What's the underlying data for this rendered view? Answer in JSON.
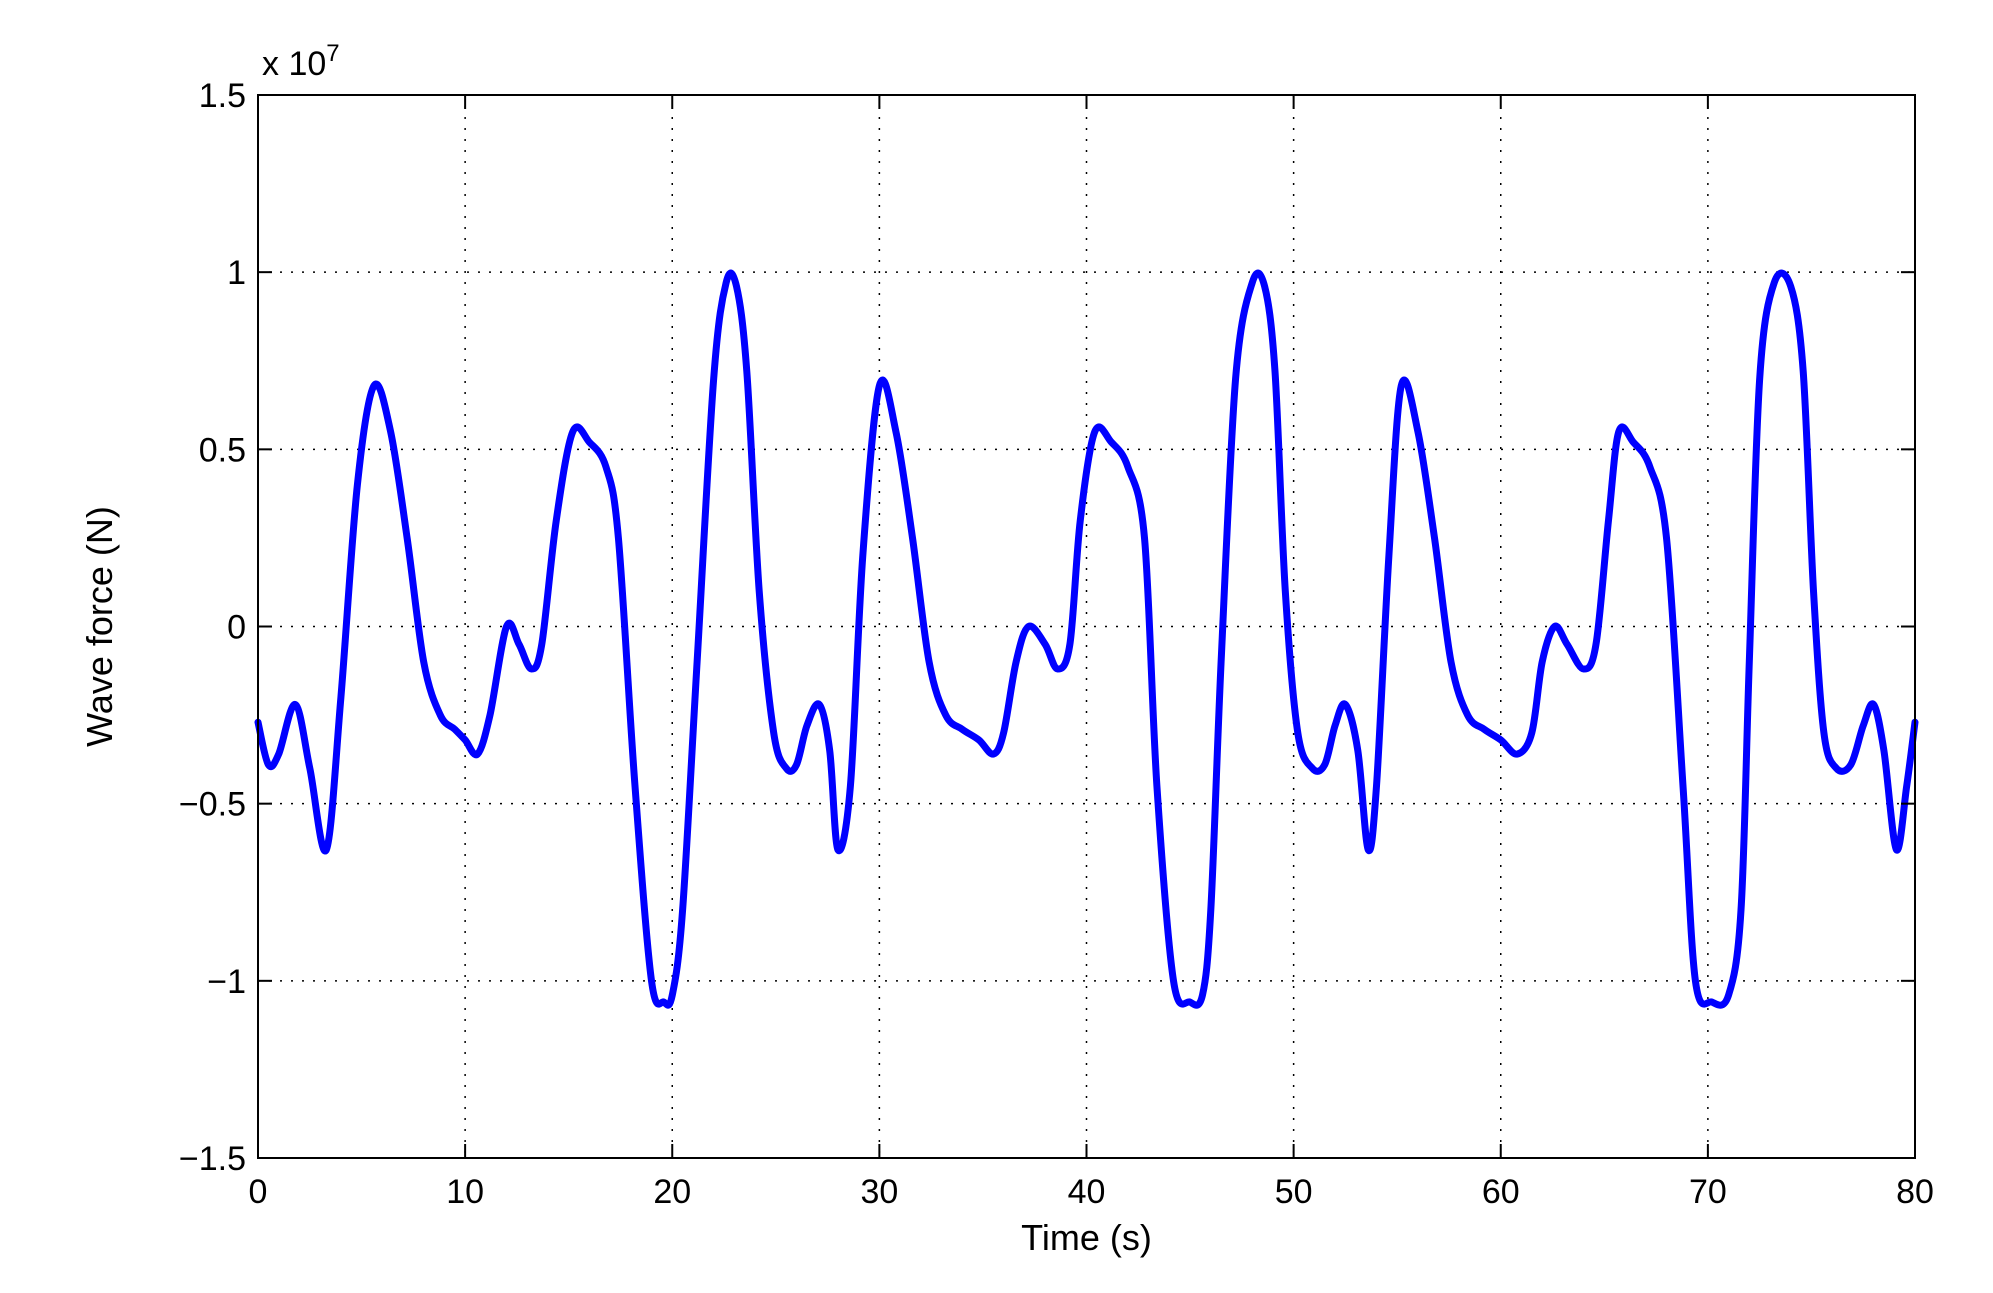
{
  "chart_data": {
    "type": "line",
    "xlabel": "Time (s)",
    "ylabel": "Wave force (N)",
    "y_scale_label": {
      "prefix": "x 10",
      "exponent": "7"
    },
    "xlim": [
      0,
      80
    ],
    "ylim": [
      -1.5,
      1.5
    ],
    "x_ticks": [
      0,
      10,
      20,
      30,
      40,
      50,
      60,
      70,
      80
    ],
    "x_tick_labels": [
      "0",
      "10",
      "20",
      "30",
      "40",
      "50",
      "60",
      "70",
      "80"
    ],
    "y_ticks": [
      -1.5,
      -1,
      -0.5,
      0,
      0.5,
      1,
      1.5
    ],
    "y_tick_labels": [
      "−1.5",
      "−1",
      "−0.5",
      "0",
      "0.5",
      "1",
      "1.5"
    ],
    "grid": true,
    "line_color": "#0000ff",
    "series": [
      {
        "x": [
          0,
          0.5,
          1.0,
          1.8,
          2.5,
          3.3,
          4.0,
          4.8,
          5.6,
          6.4,
          7.2,
          8.0,
          8.8,
          9.5,
          10.0,
          10.6,
          11.2,
          12.0,
          12.6,
          13.2,
          13.7,
          14.4,
          15.2,
          16.0,
          16.8,
          17.4,
          18.2,
          19.0,
          19.6,
          20.0,
          20.5,
          21.2,
          22.0,
          22.6,
          23.1,
          23.6,
          24.2,
          24.9,
          25.5,
          26.0,
          26.5,
          27.1,
          27.6,
          28.0,
          28.6,
          29.2,
          30.0,
          30.8,
          31.6,
          32.4,
          33.2,
          34.0,
          34.8,
          35.5,
          36.0,
          36.6,
          37.2,
          38.0,
          38.6,
          39.2,
          39.7,
          40.4,
          41.2,
          42.0,
          42.8,
          43.4,
          44.2,
          45.0,
          45.6,
          46.0,
          46.5,
          47.2,
          48.0,
          48.6,
          49.1,
          49.6,
          50.2,
          50.9,
          51.5,
          52.0,
          52.5,
          53.1,
          53.6,
          54.0,
          54.6,
          55.2,
          56.0,
          56.8,
          57.6,
          58.4,
          59.2,
          60.0,
          60.8,
          61.5,
          62.0,
          62.6,
          63.2,
          64.0,
          64.6,
          65.2,
          65.7,
          66.4,
          67.2,
          68.0,
          68.8,
          69.4,
          70.2,
          71.0,
          71.6,
          72.0,
          72.5,
          73.2,
          74.0,
          74.6,
          75.1,
          75.6,
          76.2,
          76.9,
          77.5,
          78.0,
          78.5,
          79.1,
          79.6,
          80.0
        ],
        "values": [
          -0.27,
          -0.39,
          -0.36,
          -0.22,
          -0.4,
          -0.63,
          -0.2,
          0.4,
          0.68,
          0.55,
          0.25,
          -0.1,
          -0.25,
          -0.29,
          -0.32,
          -0.36,
          -0.25,
          0.0,
          -0.05,
          -0.12,
          -0.05,
          0.3,
          0.55,
          0.52,
          0.45,
          0.25,
          -0.45,
          -1.0,
          -1.06,
          -1.04,
          -0.8,
          -0.1,
          0.7,
          0.97,
          0.96,
          0.72,
          0.1,
          -0.3,
          -0.4,
          -0.39,
          -0.28,
          -0.22,
          -0.35,
          -0.63,
          -0.45,
          0.2,
          0.68,
          0.55,
          0.25,
          -0.1,
          -0.25,
          -0.29,
          -0.32,
          -0.36,
          -0.3,
          -0.1,
          0.0,
          -0.05,
          -0.12,
          -0.05,
          0.3,
          0.55,
          0.52,
          0.45,
          0.25,
          -0.45,
          -1.0,
          -1.06,
          -1.04,
          -0.8,
          -0.1,
          0.7,
          0.97,
          0.96,
          0.72,
          0.1,
          -0.3,
          -0.4,
          -0.39,
          -0.28,
          -0.22,
          -0.35,
          -0.63,
          -0.45,
          0.2,
          0.68,
          0.55,
          0.25,
          -0.1,
          -0.25,
          -0.29,
          -0.32,
          -0.36,
          -0.3,
          -0.1,
          0.0,
          -0.05,
          -0.12,
          -0.05,
          0.3,
          0.55,
          0.52,
          0.45,
          0.25,
          -0.45,
          -1.0,
          -1.06,
          -1.04,
          -0.8,
          -0.1,
          0.7,
          0.97,
          0.96,
          0.72,
          0.1,
          -0.3,
          -0.4,
          -0.39,
          -0.28,
          -0.22,
          -0.35,
          -0.63,
          -0.45,
          -0.27
        ]
      }
    ]
  }
}
